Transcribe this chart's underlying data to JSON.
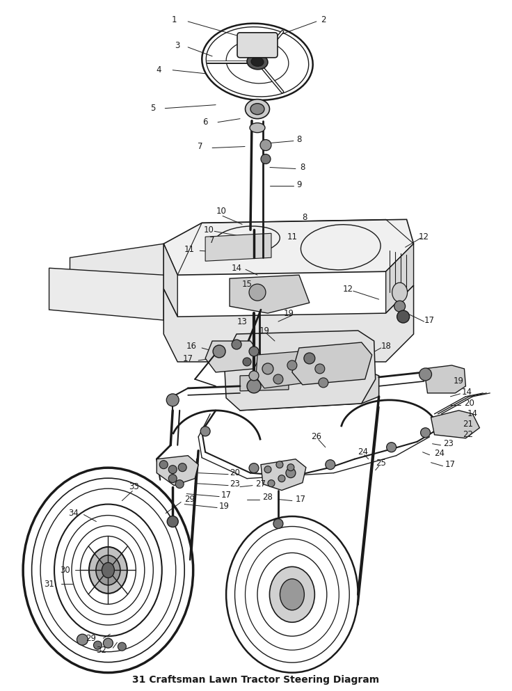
{
  "title": "31 Craftsman Lawn Tractor Steering Diagram",
  "bg_color": "#ffffff",
  "fig_width": 7.36,
  "fig_height": 9.93,
  "dpi": 100,
  "line_color": "#1a1a1a",
  "label_color": "#1a1a1a",
  "label_fontsize": 8.5
}
